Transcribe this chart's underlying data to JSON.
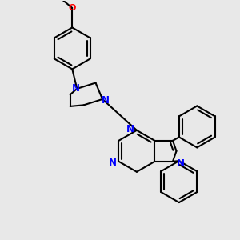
{
  "bg_color": "#e8e8e8",
  "bond_color": "#000000",
  "n_color": "#0000ff",
  "o_color": "#ff0000",
  "line_width": 1.5,
  "figsize": [
    3.0,
    3.0
  ],
  "dpi": 100,
  "xlim": [
    -4.5,
    5.5
  ],
  "ylim": [
    -5.5,
    4.5
  ]
}
